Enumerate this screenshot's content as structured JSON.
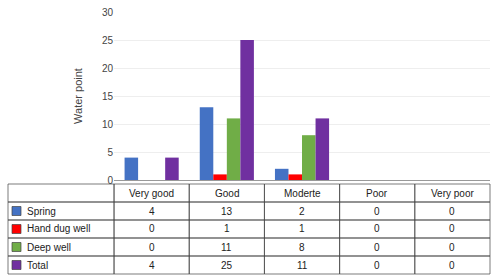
{
  "chart_data": {
    "type": "bar",
    "ylabel": "Water point",
    "categories": [
      "Very good",
      "Good",
      "Moderte",
      "Poor",
      "Very poor"
    ],
    "series": [
      {
        "name": "Spring",
        "color": "#4472C4",
        "values": [
          4,
          13,
          2,
          0,
          0
        ]
      },
      {
        "name": "Hand dug well",
        "color": "#FF0000",
        "values": [
          0,
          1,
          1,
          0,
          0
        ]
      },
      {
        "name": "Deep well",
        "color": "#70AD47",
        "values": [
          0,
          11,
          8,
          0,
          0
        ]
      },
      {
        "name": "Total",
        "color": "#7030A0",
        "values": [
          4,
          25,
          11,
          0,
          0
        ]
      }
    ],
    "ylim": [
      0,
      30
    ],
    "yticks": [
      0,
      5,
      10,
      15,
      20,
      25,
      30
    ],
    "grid": true,
    "tick_labels": "y"
  }
}
